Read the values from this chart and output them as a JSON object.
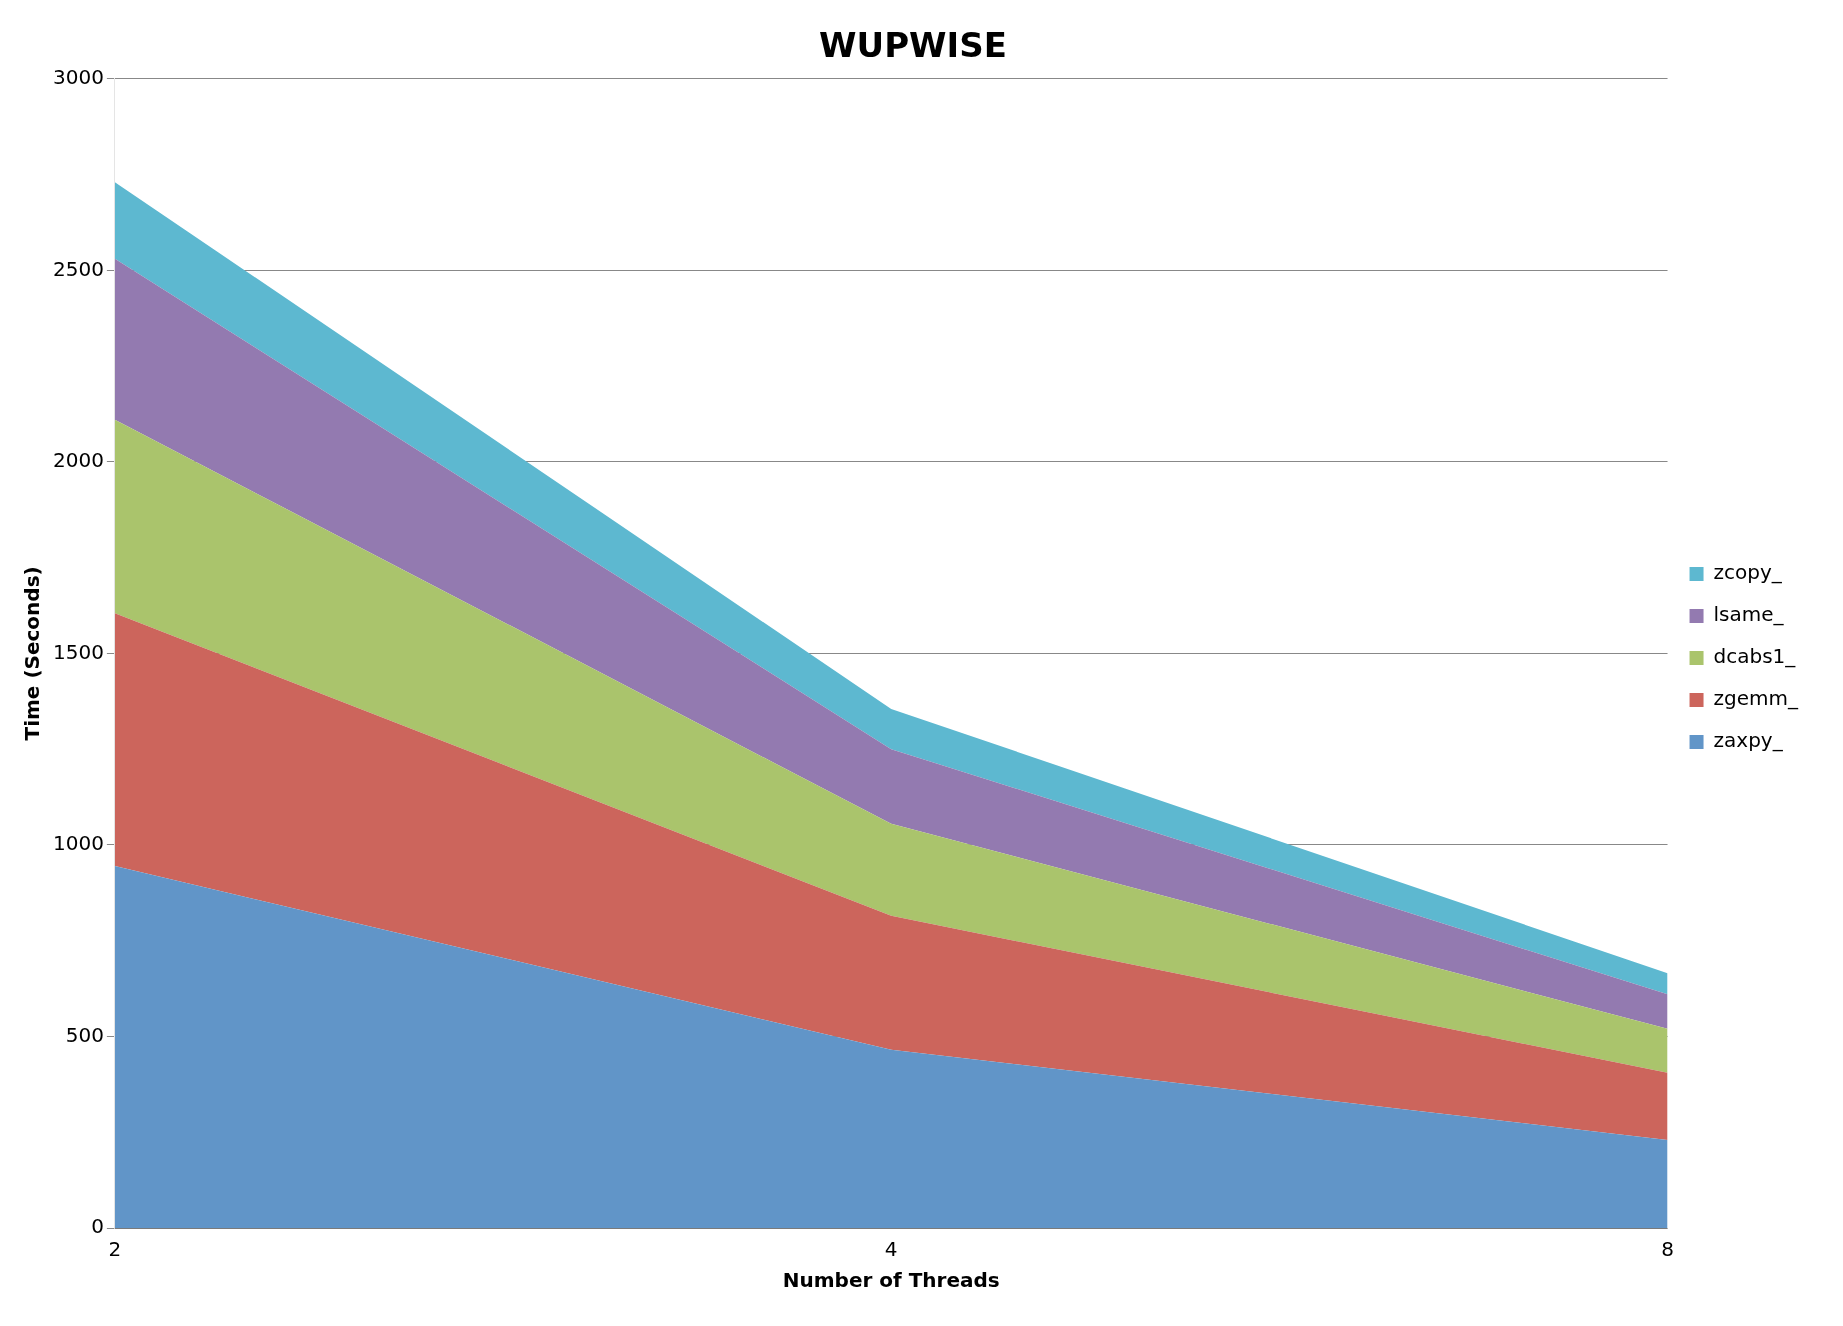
{
  "chart_data": {
    "type": "area",
    "title": "WUPWISE",
    "xlabel": "Number of Threads",
    "ylabel": "Time (Seconds)",
    "categories": [
      "2",
      "4",
      "8"
    ],
    "stacked": true,
    "ylim": [
      0,
      3000
    ],
    "yticks": [
      0,
      500,
      1000,
      1500,
      2000,
      2500,
      3000
    ],
    "grid": "y",
    "legend": "right",
    "series": [
      {
        "name": "zaxpy_",
        "color": "#6195c8",
        "values": [
          945,
          465,
          230
        ]
      },
      {
        "name": "zgemm_",
        "color": "#cc655c",
        "values": [
          660,
          350,
          175
        ]
      },
      {
        "name": "dcabs1_",
        "color": "#aac46c",
        "values": [
          505,
          240,
          115
        ]
      },
      {
        "name": "lsame_",
        "color": "#937ab0",
        "values": [
          420,
          195,
          90
        ]
      },
      {
        "name": "zcopy_",
        "color": "#5db8d0",
        "values": [
          200,
          105,
          55
        ]
      }
    ]
  }
}
